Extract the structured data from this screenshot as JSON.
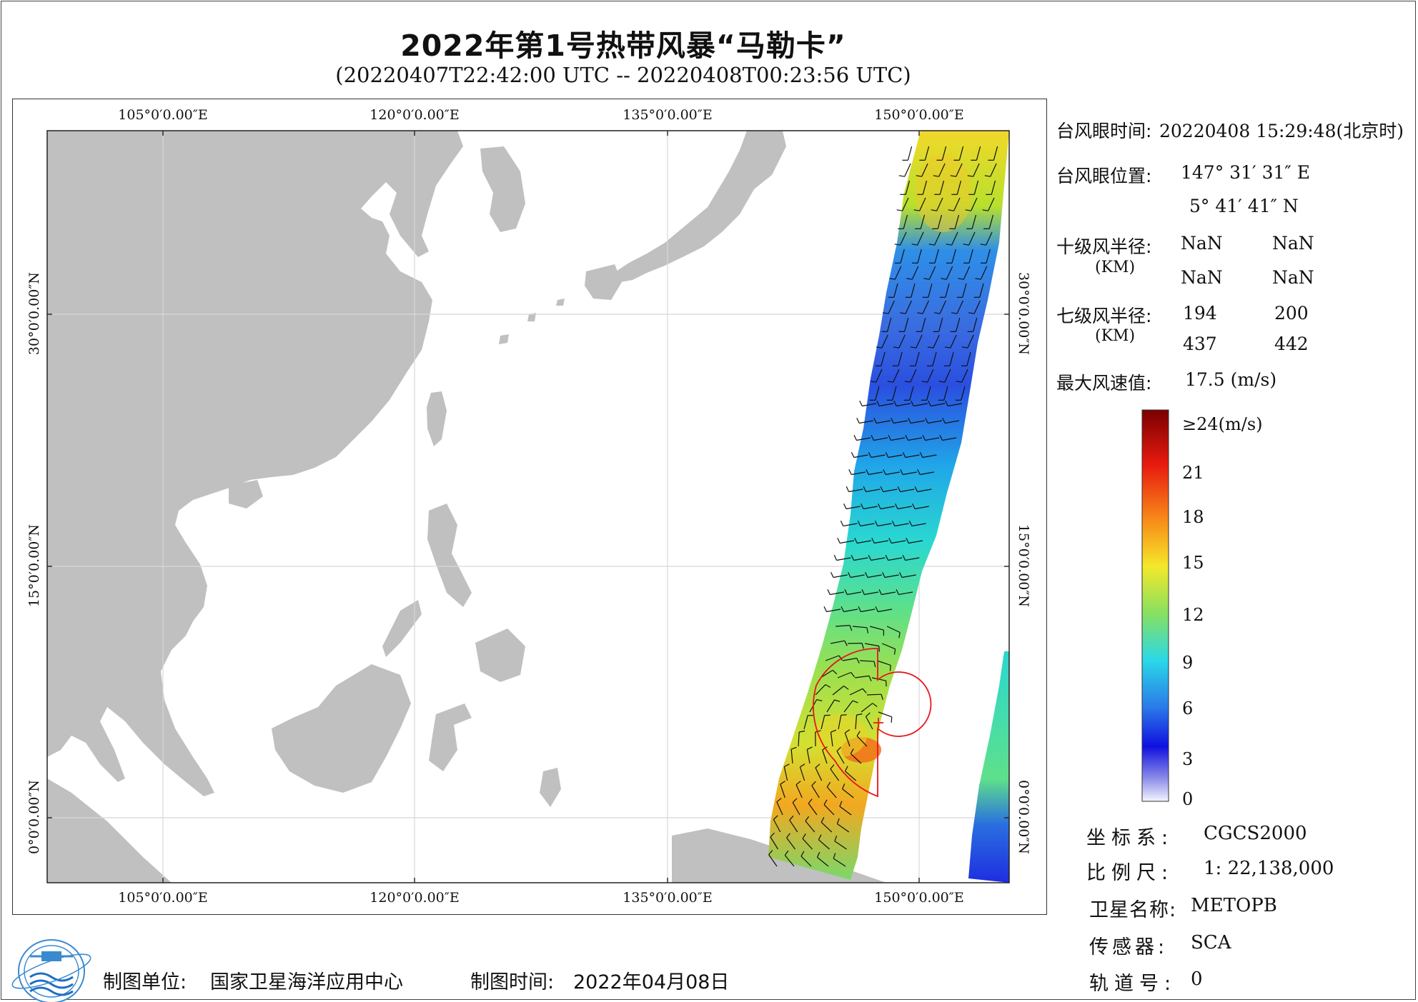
{
  "title": "2022年第1号热带风暴“马勒卡”",
  "subtitle": "(20220407T22:42:00 UTC -- 20220408T00:23:56 UTC)",
  "map": {
    "lon_ticks": [
      "105°0′0.00″E",
      "120°0′0.00″E",
      "135°0′0.00″E",
      "150°0′0.00″E"
    ],
    "lat_ticks": [
      "30°0′0.00″N",
      "15°0′0.00″N",
      "0°0′0.00″N"
    ],
    "colors": {
      "land": "#c0c0c0",
      "ocean": "#ffffff",
      "grid": "#d8d8d8",
      "typhoon_circle": "#e8141c"
    }
  },
  "info": {
    "eye_time_label": "台风眼时间:",
    "eye_time_value": "20220408 15:29:48(北京时)",
    "eye_pos_label": "台风眼位置:",
    "eye_lon": "147° 31′ 31″ E",
    "eye_lat": "5° 41′ 41″ N",
    "r10_label": "十级风半径:",
    "r10_unit": "(KM)",
    "r10_values": [
      "NaN",
      "NaN",
      "NaN",
      "NaN"
    ],
    "r7_label": "七级风半径:",
    "r7_unit": "(KM)",
    "r7_values": [
      "194",
      "200",
      "437",
      "442"
    ],
    "max_wind_label": "最大风速值:",
    "max_wind_value": "17.5  (m/s)"
  },
  "colorbar": {
    "labels": [
      "≥24(m/s)",
      "21",
      "18",
      "15",
      "12",
      "9",
      "6",
      "3",
      "0"
    ]
  },
  "meta": {
    "crs_label": "坐标系:",
    "crs_value": "CGCS2000",
    "scale_label": "比例尺:",
    "scale_value": "1: 22,138,000",
    "satellite_label": "卫星名称:",
    "satellite_value": "METOPB",
    "sensor_label": "传感器:",
    "sensor_value": "SCA",
    "orbit_label": "轨道号:",
    "orbit_value": "0"
  },
  "footer": {
    "producer_label": "制图单位:",
    "producer_value": "国家卫星海洋应用中心",
    "date_label": "制图时间:",
    "date_value": "2022年04月08日"
  }
}
